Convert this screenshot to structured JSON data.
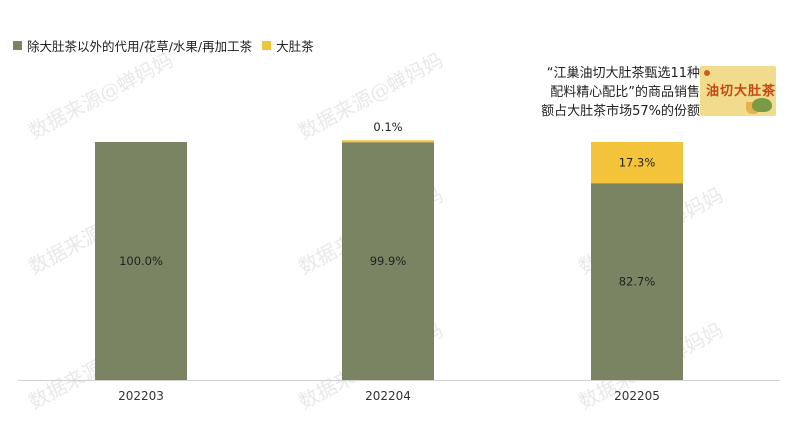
{
  "legend": {
    "series_a": "除大肚茶以外的代用/花草/水果/再加工茶",
    "series_b": "大肚茶"
  },
  "colors": {
    "series_a": "#7a8462",
    "series_b": "#f3c43a"
  },
  "watermark": "数据来源@蝉妈妈",
  "annotation": {
    "line1": "“江巢油切大肚茶甄选11种",
    "line2": "配料精心配比”的商品销售",
    "line3": "额占大肚茶市场57%的份额"
  },
  "product_image": {
    "name": "油切大肚茶"
  },
  "chart_data": {
    "type": "bar",
    "stacked": true,
    "categories": [
      "202203",
      "202204",
      "202205"
    ],
    "series": [
      {
        "name": "除大肚茶以外的代用/花草/水果/再加工茶",
        "values": [
          100.0,
          99.9,
          82.7
        ],
        "labels": [
          "100.0%",
          "99.9%",
          "82.7%"
        ]
      },
      {
        "name": "大肚茶",
        "values": [
          0.0,
          0.1,
          17.3
        ],
        "labels": [
          "",
          "0.1%",
          "17.3%"
        ]
      }
    ],
    "ylim": [
      0,
      100
    ],
    "legend_position": "top-left"
  }
}
